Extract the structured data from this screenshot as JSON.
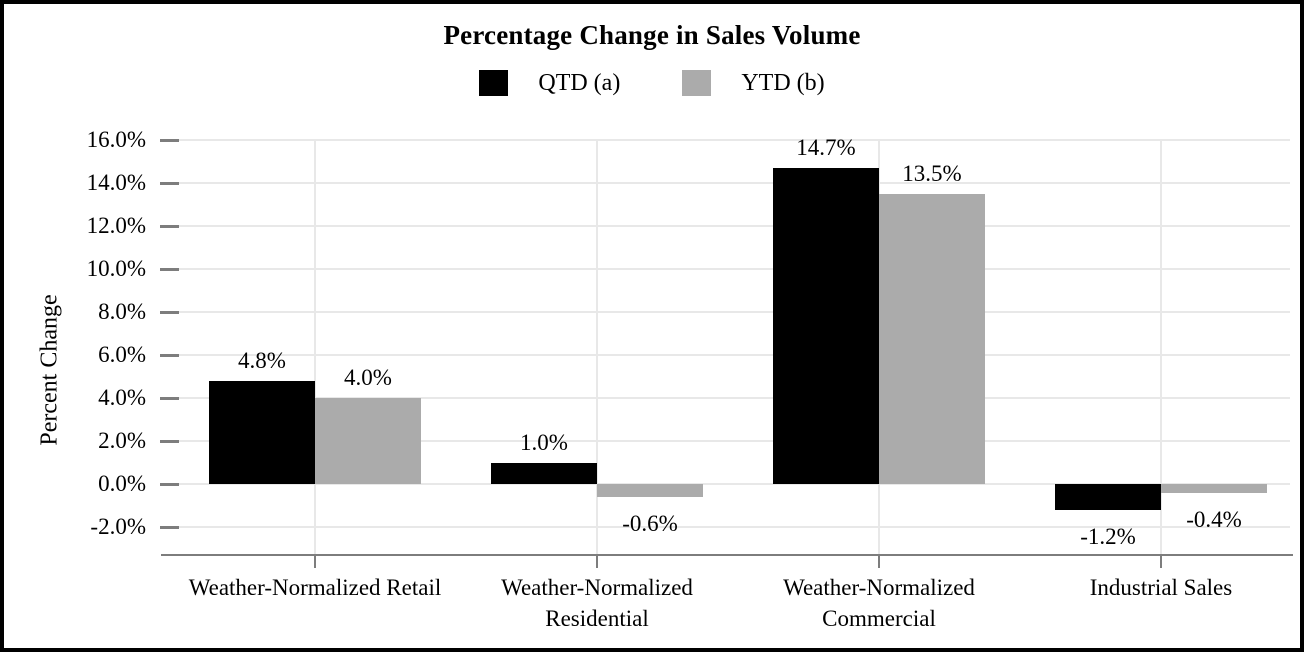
{
  "chart_data": {
    "type": "bar",
    "title": "Percentage Change in Sales Volume",
    "ylabel": "Percent Change",
    "xlabel": "",
    "categories": [
      "Weather-Normalized Retail",
      "Weather-Normalized Residential",
      "Weather-Normalized Commercial",
      "Industrial Sales"
    ],
    "series": [
      {
        "name": "QTD (a)",
        "color": "#000000",
        "values": [
          4.8,
          1.0,
          14.7,
          -1.2
        ],
        "labels": [
          "4.8%",
          "1.0%",
          "14.7%",
          "-1.2%"
        ]
      },
      {
        "name": "YTD (b)",
        "color": "#ababab",
        "values": [
          4.0,
          -0.6,
          13.5,
          -0.4
        ],
        "labels": [
          "4.0%",
          "-0.6%",
          "13.5%",
          "-0.4%"
        ]
      }
    ],
    "ytick_values": [
      16,
      14,
      12,
      10,
      8,
      6,
      4,
      2,
      0,
      -2
    ],
    "ytick_labels": [
      "16.0%",
      "14.0%",
      "12.0%",
      "10.0%",
      "8.0%",
      "6.0%",
      "4.0%",
      "2.0%",
      "0.0%",
      "-2.0%"
    ],
    "ylim": [
      -3.3,
      16.75
    ],
    "grid": true,
    "legend_position": "top-center",
    "colors": {
      "gridline": "#e8e8e8",
      "axis": "#7d7d7d",
      "text": "#000000",
      "background": "#ffffff",
      "frame_border": "#000000"
    }
  }
}
